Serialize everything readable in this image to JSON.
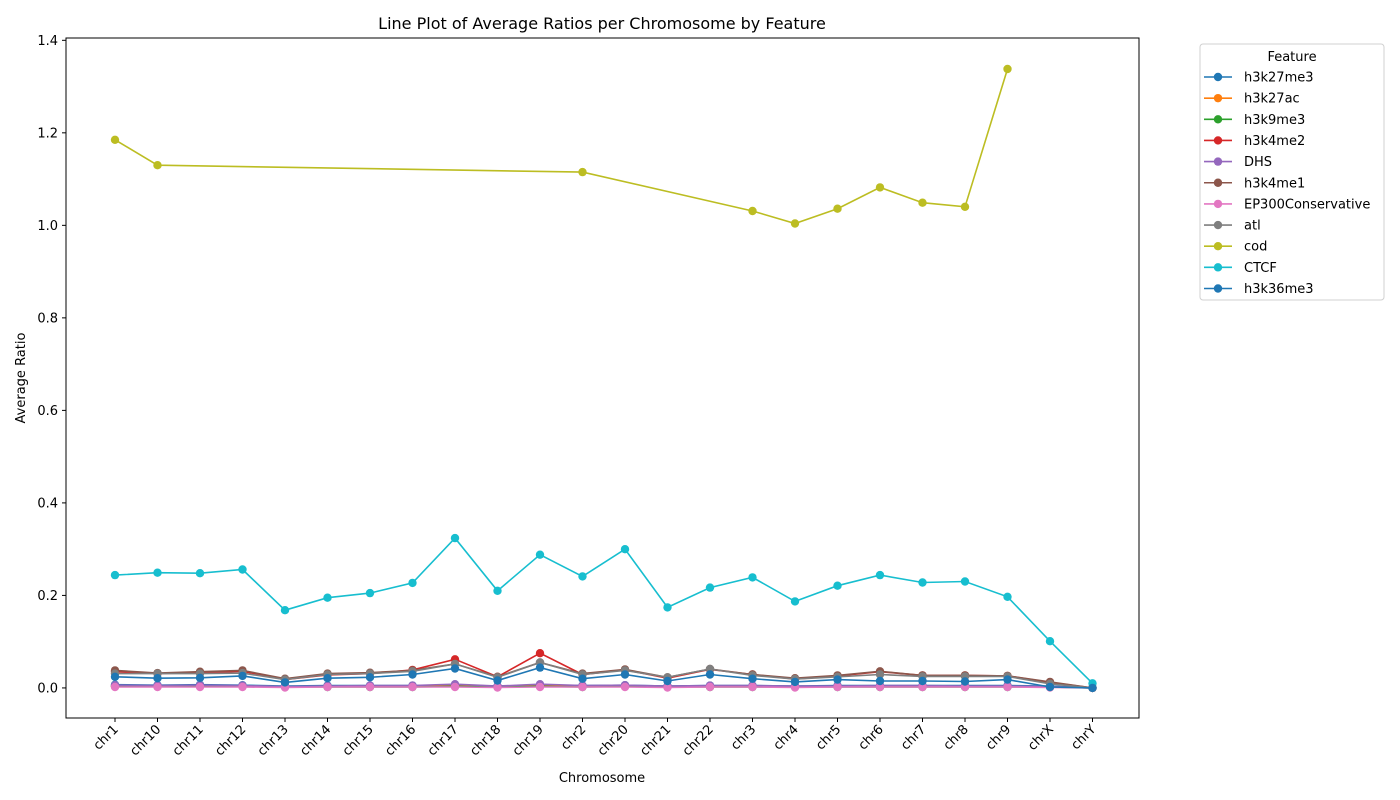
{
  "chart_data": {
    "type": "line",
    "title": "Line Plot of Average Ratios per Chromosome by Feature",
    "xlabel": "Chromosome",
    "ylabel": "Average Ratio",
    "ylim": [
      -0.065,
      1.405
    ],
    "yticks": [
      "0.0",
      "0.2",
      "0.4",
      "0.6",
      "0.8",
      "1.0",
      "1.2",
      "1.4"
    ],
    "grid": false,
    "legend_title": "Feature",
    "legend_position": "outside-right",
    "categories": [
      "chr1",
      "chr10",
      "chr11",
      "chr12",
      "chr13",
      "chr14",
      "chr15",
      "chr16",
      "chr17",
      "chr18",
      "chr19",
      "chr2",
      "chr20",
      "chr21",
      "chr22",
      "chr3",
      "chr4",
      "chr5",
      "chr6",
      "chr7",
      "chr8",
      "chr9",
      "chrX",
      "chrY"
    ],
    "series": [
      {
        "name": "h3k27me3",
        "color": "#1f77b4",
        "values": [
          0.007,
          0.006,
          0.007,
          0.006,
          0.004,
          0.005,
          0.005,
          0.005,
          0.006,
          0.004,
          0.006,
          0.005,
          0.006,
          0.004,
          0.005,
          0.005,
          0.004,
          0.005,
          0.005,
          0.005,
          0.005,
          0.005,
          0.004,
          0.0
        ]
      },
      {
        "name": "h3k27ac",
        "color": "#ff7f0e",
        "values": [
          0.004,
          0.003,
          0.004,
          0.004,
          0.002,
          0.003,
          0.003,
          0.003,
          0.004,
          0.002,
          0.004,
          0.003,
          0.004,
          0.002,
          0.003,
          0.003,
          0.002,
          0.003,
          0.003,
          0.003,
          0.003,
          0.003,
          0.002,
          0.0
        ]
      },
      {
        "name": "h3k9me3",
        "color": "#2ca02c",
        "values": [
          0.003,
          0.003,
          0.003,
          0.003,
          0.002,
          0.002,
          0.002,
          0.002,
          0.003,
          0.002,
          0.003,
          0.002,
          0.003,
          0.002,
          0.002,
          0.002,
          0.002,
          0.002,
          0.002,
          0.002,
          0.002,
          0.002,
          0.002,
          0.0
        ]
      },
      {
        "name": "h3k4me2",
        "color": "#d62728",
        "values": [
          0.035,
          0.031,
          0.033,
          0.036,
          0.018,
          0.028,
          0.031,
          0.039,
          0.062,
          0.024,
          0.075,
          0.029,
          0.039,
          0.021,
          0.04,
          0.029,
          0.019,
          0.026,
          0.035,
          0.027,
          0.027,
          0.026,
          0.012,
          0.0
        ]
      },
      {
        "name": "DHS",
        "color": "#9467bd",
        "values": [
          0.006,
          0.005,
          0.006,
          0.005,
          0.003,
          0.004,
          0.005,
          0.005,
          0.008,
          0.004,
          0.008,
          0.005,
          0.006,
          0.004,
          0.005,
          0.005,
          0.004,
          0.004,
          0.005,
          0.005,
          0.004,
          0.004,
          0.003,
          0.0
        ]
      },
      {
        "name": "h3k4me1",
        "color": "#8c564b",
        "values": [
          0.038,
          0.032,
          0.035,
          0.038,
          0.02,
          0.031,
          0.033,
          0.038,
          0.052,
          0.024,
          0.055,
          0.031,
          0.04,
          0.023,
          0.041,
          0.029,
          0.021,
          0.027,
          0.036,
          0.027,
          0.027,
          0.026,
          0.013,
          0.0
        ]
      },
      {
        "name": "EP300Conservative",
        "color": "#e377c2",
        "values": [
          0.002,
          0.002,
          0.002,
          0.002,
          0.001,
          0.002,
          0.002,
          0.002,
          0.002,
          0.001,
          0.002,
          0.002,
          0.002,
          0.001,
          0.002,
          0.002,
          0.001,
          0.002,
          0.002,
          0.002,
          0.002,
          0.002,
          0.001,
          0.0
        ]
      },
      {
        "name": "atl",
        "color": "#7f7f7f",
        "values": [
          0.031,
          0.031,
          0.031,
          0.032,
          0.018,
          0.029,
          0.031,
          0.036,
          0.052,
          0.023,
          0.055,
          0.029,
          0.038,
          0.023,
          0.041,
          0.027,
          0.019,
          0.024,
          0.029,
          0.025,
          0.025,
          0.025,
          0.009,
          0.0
        ]
      },
      {
        "name": "cod",
        "color": "#bcbd22",
        "values": [
          1.185,
          1.13,
          null,
          null,
          null,
          null,
          null,
          null,
          null,
          null,
          null,
          1.115,
          null,
          null,
          null,
          1.031,
          1.004,
          1.036,
          1.082,
          1.049,
          1.04,
          1.338,
          null,
          null
        ]
      },
      {
        "name": "CTCF",
        "color": "#17becf",
        "values": [
          0.244,
          0.249,
          0.248,
          0.256,
          0.168,
          0.195,
          0.205,
          0.227,
          0.324,
          0.21,
          0.288,
          0.241,
          0.3,
          0.174,
          0.217,
          0.239,
          0.187,
          0.221,
          0.244,
          0.228,
          0.23,
          0.197,
          0.101,
          0.01
        ]
      },
      {
        "name": "h3k36me3",
        "color": "#1f77b4",
        "values": [
          0.024,
          0.021,
          0.022,
          0.026,
          0.012,
          0.021,
          0.023,
          0.029,
          0.042,
          0.016,
          0.044,
          0.02,
          0.029,
          0.015,
          0.029,
          0.02,
          0.013,
          0.018,
          0.015,
          0.015,
          0.014,
          0.018,
          0.002,
          0.0
        ]
      }
    ]
  }
}
